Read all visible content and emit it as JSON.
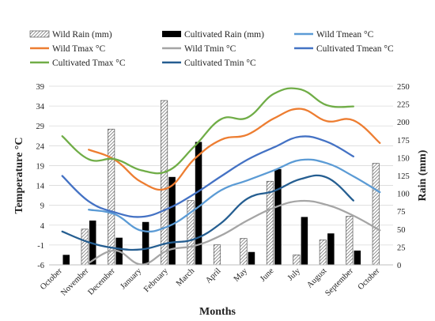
{
  "chart_data": {
    "type": "bar",
    "categories": [
      "October",
      "November",
      "December",
      "January",
      "February",
      "March",
      "April",
      "May",
      "June",
      "July",
      "August",
      "September",
      "October"
    ],
    "xlabel": "Months",
    "ylabel": "Temperature °C",
    "y2label": "Rain (mm)",
    "ylim": [
      -6,
      39
    ],
    "y2lim": [
      0,
      250
    ],
    "yticks": [
      -6,
      -1,
      4,
      9,
      14,
      19,
      24,
      29,
      34,
      39
    ],
    "y2ticks": [
      0,
      25,
      50,
      75,
      100,
      125,
      150,
      175,
      200,
      225,
      250
    ],
    "grid": true,
    "legend_position": "top",
    "bar_series": [
      {
        "name": "Wild Rain (mm)",
        "axis": "right",
        "pattern": "hatched",
        "color": "#595959",
        "values": [
          null,
          50,
          190,
          null,
          230,
          90,
          28,
          37,
          117,
          14,
          35,
          68,
          142
        ]
      },
      {
        "name": "Cultivated Rain (mm)",
        "axis": "right",
        "pattern": "solid",
        "color": "#000000",
        "values": [
          14,
          62,
          38,
          60,
          123,
          172,
          null,
          18,
          134,
          67,
          44,
          20,
          null
        ]
      }
    ],
    "line_series": [
      {
        "name": "Wild Tmean °C",
        "axis": "left",
        "color": "#5b9bd5",
        "values": [
          null,
          7.9,
          6.7,
          2.6,
          3.7,
          7.9,
          12.8,
          15.3,
          17.8,
          20.4,
          19.6,
          16.3,
          12.3
        ]
      },
      {
        "name": "Wild Tmax °C",
        "axis": "left",
        "color": "#ed7d31",
        "values": [
          null,
          23,
          20.4,
          14.8,
          13.4,
          20.7,
          25.5,
          26.8,
          30.9,
          33.3,
          30.2,
          30.4,
          24.7
        ]
      },
      {
        "name": "Wild Tmin °C",
        "axis": "left",
        "color": "#a5a5a5",
        "values": [
          null,
          -5.5,
          -2.4,
          -5.9,
          -2.3,
          -1.2,
          1.4,
          5.2,
          8.4,
          10.1,
          9.1,
          6.4,
          2.7
        ]
      },
      {
        "name": "Cultivated Tmean °C",
        "axis": "left",
        "color": "#4472c4",
        "values": [
          16.4,
          10,
          7.2,
          6.1,
          8.2,
          11.9,
          16.3,
          20.5,
          23.6,
          26.3,
          25,
          21.3,
          null
        ]
      },
      {
        "name": "Cultivated Tmax °C",
        "axis": "left",
        "color": "#70ad47",
        "values": [
          26.4,
          20.6,
          20.6,
          17.8,
          17.7,
          23.9,
          30.7,
          31.1,
          37.1,
          38.2,
          34.2,
          33.9,
          null
        ]
      },
      {
        "name": "Cultivated Tmin °C",
        "axis": "left",
        "color": "#255e91",
        "values": [
          2.4,
          -0.3,
          -1.8,
          -2.1,
          -0.5,
          0.5,
          4.5,
          10.7,
          12.6,
          15.6,
          16.0,
          10.2,
          null
        ]
      }
    ]
  }
}
